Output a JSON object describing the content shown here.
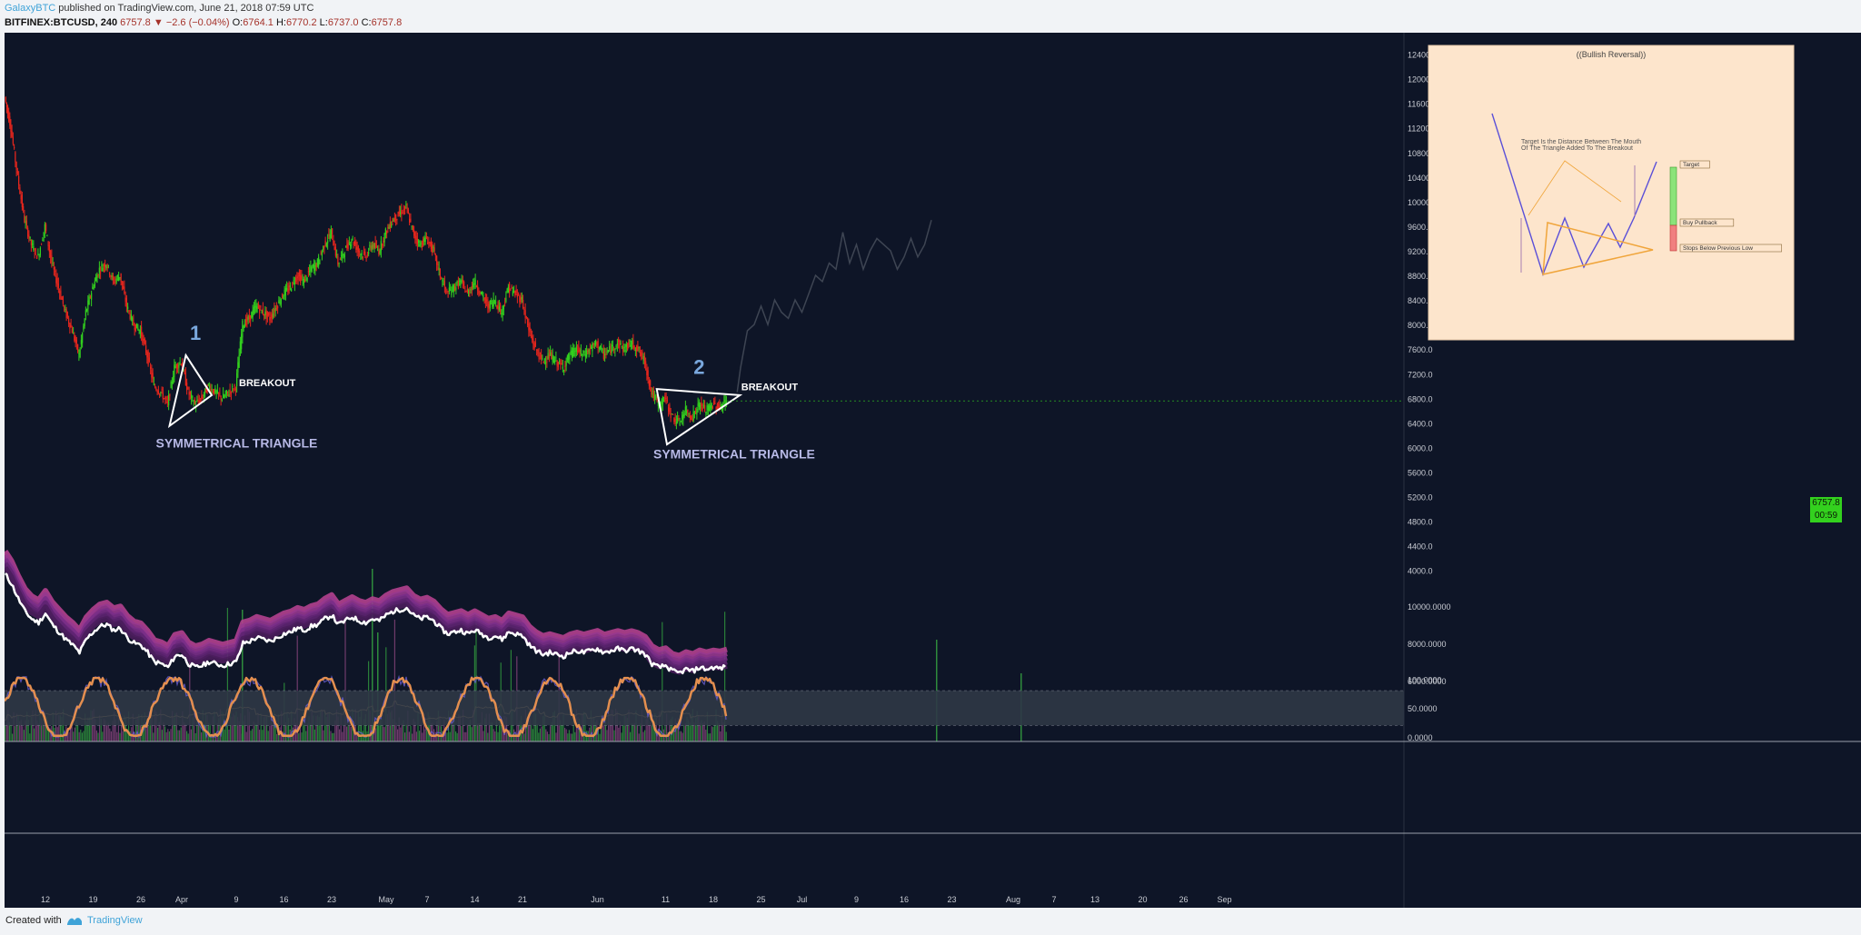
{
  "header": {
    "author": "GalaxyBTC",
    "published_text": " published on TradingView.com, June 21, 2018 07:59 UTC",
    "symbol": "BITFINEX:BTCUSD, 240",
    "last": "6757.8",
    "change": "−2.6 (−0.04%)",
    "open_label": "O:",
    "open": "6764.1",
    "high_label": "H:",
    "high": "6770.2",
    "low_label": "L:",
    "low": "6737.0",
    "close_label": "C:",
    "close": "6757.8"
  },
  "footer": {
    "created_with": "Created with",
    "brand": "TradingView"
  },
  "colors": {
    "background": "#0e1527",
    "up": "#33d11e",
    "down": "#e8261d",
    "triangle": "#ffffff",
    "label": "#b7b9e6",
    "number": "#7aa8de",
    "projection": "#3e4553",
    "inset_bg": "#fde5cc",
    "inset_line": "#5a4fd8",
    "inset_triangle": "#f0a53b",
    "oscillator": "#e48f4f"
  },
  "chart_data": {
    "type": "candlestick",
    "symbol": "BITFINEX:BTCUSD",
    "interval": "240",
    "y_axis": {
      "ticks": [
        4000,
        4400,
        4800,
        5200,
        5600,
        6000,
        6400,
        6800,
        7200,
        7600,
        8000,
        8400,
        8800,
        9200,
        9600,
        10000,
        10400,
        10800,
        11200,
        11600,
        12000,
        12400
      ],
      "range": [
        3700,
        12600
      ]
    },
    "x_axis": {
      "labels": [
        "12",
        "19",
        "26",
        "Apr",
        "9",
        "16",
        "23",
        "May",
        "7",
        "14",
        "21",
        "Jun",
        "11",
        "18",
        "25",
        "Jul",
        "9",
        "16",
        "23",
        "Aug",
        "7",
        "13",
        "20",
        "26",
        "Sep"
      ],
      "days": [
        11,
        18,
        25,
        31,
        39,
        46,
        53,
        61,
        67,
        74,
        81,
        92,
        102,
        109,
        116,
        122,
        130,
        137,
        144,
        153,
        159,
        165,
        172,
        178,
        184
      ]
    },
    "price_path": [
      {
        "day": 5.1,
        "price": 11700
      },
      {
        "day": 6,
        "price": 11200
      },
      {
        "day": 7,
        "price": 10400
      },
      {
        "day": 8,
        "price": 9700
      },
      {
        "day": 9,
        "price": 9300
      },
      {
        "day": 10,
        "price": 9100
      },
      {
        "day": 11,
        "price": 9600
      },
      {
        "day": 12,
        "price": 9000
      },
      {
        "day": 13,
        "price": 8600
      },
      {
        "day": 14,
        "price": 8200
      },
      {
        "day": 15,
        "price": 7900
      },
      {
        "day": 16,
        "price": 7500
      },
      {
        "day": 17,
        "price": 8200
      },
      {
        "day": 18,
        "price": 8600
      },
      {
        "day": 19,
        "price": 8900
      },
      {
        "day": 20,
        "price": 9000
      },
      {
        "day": 21,
        "price": 8700
      },
      {
        "day": 22,
        "price": 8800
      },
      {
        "day": 23,
        "price": 8300
      },
      {
        "day": 24,
        "price": 8000
      },
      {
        "day": 25,
        "price": 7900
      },
      {
        "day": 26,
        "price": 7500
      },
      {
        "day": 27,
        "price": 7000
      },
      {
        "day": 28,
        "price": 6900
      },
      {
        "day": 29,
        "price": 6700
      },
      {
        "day": 30,
        "price": 7300
      },
      {
        "day": 31,
        "price": 7400
      },
      {
        "day": 32,
        "price": 6900
      },
      {
        "day": 33,
        "price": 6700
      },
      {
        "day": 34,
        "price": 6800
      },
      {
        "day": 35,
        "price": 7000
      },
      {
        "day": 36,
        "price": 6900
      },
      {
        "day": 37,
        "price": 6800
      },
      {
        "day": 38,
        "price": 6900
      },
      {
        "day": 39,
        "price": 7000
      },
      {
        "day": 40,
        "price": 8000
      },
      {
        "day": 41,
        "price": 8100
      },
      {
        "day": 42,
        "price": 8300
      },
      {
        "day": 43,
        "price": 8200
      },
      {
        "day": 44,
        "price": 8100
      },
      {
        "day": 45,
        "price": 8300
      },
      {
        "day": 46,
        "price": 8500
      },
      {
        "day": 47,
        "price": 8600
      },
      {
        "day": 48,
        "price": 8800
      },
      {
        "day": 49,
        "price": 8700
      },
      {
        "day": 50,
        "price": 8900
      },
      {
        "day": 51,
        "price": 9000
      },
      {
        "day": 52,
        "price": 9300
      },
      {
        "day": 53,
        "price": 9500
      },
      {
        "day": 54,
        "price": 9000
      },
      {
        "day": 55,
        "price": 9200
      },
      {
        "day": 56,
        "price": 9400
      },
      {
        "day": 57,
        "price": 9200
      },
      {
        "day": 58,
        "price": 9100
      },
      {
        "day": 59,
        "price": 9300
      },
      {
        "day": 60,
        "price": 9200
      },
      {
        "day": 61,
        "price": 9500
      },
      {
        "day": 62,
        "price": 9700
      },
      {
        "day": 63,
        "price": 9800
      },
      {
        "day": 64,
        "price": 9900
      },
      {
        "day": 65,
        "price": 9500
      },
      {
        "day": 66,
        "price": 9300
      },
      {
        "day": 67,
        "price": 9400
      },
      {
        "day": 68,
        "price": 9200
      },
      {
        "day": 69,
        "price": 8800
      },
      {
        "day": 70,
        "price": 8500
      },
      {
        "day": 71,
        "price": 8600
      },
      {
        "day": 72,
        "price": 8700
      },
      {
        "day": 73,
        "price": 8500
      },
      {
        "day": 74,
        "price": 8700
      },
      {
        "day": 75,
        "price": 8500
      },
      {
        "day": 76,
        "price": 8300
      },
      {
        "day": 77,
        "price": 8400
      },
      {
        "day": 78,
        "price": 8200
      },
      {
        "day": 79,
        "price": 8600
      },
      {
        "day": 80,
        "price": 8500
      },
      {
        "day": 81,
        "price": 8400
      },
      {
        "day": 82,
        "price": 7900
      },
      {
        "day": 83,
        "price": 7600
      },
      {
        "day": 84,
        "price": 7400
      },
      {
        "day": 85,
        "price": 7500
      },
      {
        "day": 86,
        "price": 7400
      },
      {
        "day": 87,
        "price": 7300
      },
      {
        "day": 88,
        "price": 7500
      },
      {
        "day": 89,
        "price": 7600
      },
      {
        "day": 90,
        "price": 7500
      },
      {
        "day": 91,
        "price": 7600
      },
      {
        "day": 92,
        "price": 7700
      },
      {
        "day": 93,
        "price": 7500
      },
      {
        "day": 94,
        "price": 7600
      },
      {
        "day": 95,
        "price": 7700
      },
      {
        "day": 96,
        "price": 7600
      },
      {
        "day": 97,
        "price": 7700
      },
      {
        "day": 98,
        "price": 7600
      },
      {
        "day": 99,
        "price": 7400
      },
      {
        "day": 100,
        "price": 6900
      },
      {
        "day": 101,
        "price": 6700
      },
      {
        "day": 102,
        "price": 6800
      },
      {
        "day": 103,
        "price": 6500
      },
      {
        "day": 104,
        "price": 6400
      },
      {
        "day": 105,
        "price": 6600
      },
      {
        "day": 106,
        "price": 6500
      },
      {
        "day": 107,
        "price": 6700
      },
      {
        "day": 108,
        "price": 6600
      },
      {
        "day": 109,
        "price": 6700
      },
      {
        "day": 110,
        "price": 6650
      },
      {
        "day": 111,
        "price": 6757.8
      }
    ],
    "projection_path": [
      {
        "day": 112.5,
        "price": 6900
      },
      {
        "day": 113,
        "price": 7300
      },
      {
        "day": 114,
        "price": 7900
      },
      {
        "day": 115,
        "price": 8000
      },
      {
        "day": 116,
        "price": 8300
      },
      {
        "day": 117,
        "price": 8000
      },
      {
        "day": 118,
        "price": 8400
      },
      {
        "day": 119,
        "price": 8200
      },
      {
        "day": 120,
        "price": 8100
      },
      {
        "day": 121,
        "price": 8400
      },
      {
        "day": 122,
        "price": 8200
      },
      {
        "day": 123,
        "price": 8500
      },
      {
        "day": 124,
        "price": 8800
      },
      {
        "day": 125,
        "price": 8700
      },
      {
        "day": 126,
        "price": 9000
      },
      {
        "day": 127,
        "price": 8900
      },
      {
        "day": 128,
        "price": 9500
      },
      {
        "day": 129,
        "price": 9000
      },
      {
        "day": 130,
        "price": 9300
      },
      {
        "day": 131,
        "price": 8900
      },
      {
        "day": 132,
        "price": 9200
      },
      {
        "day": 133,
        "price": 9400
      },
      {
        "day": 134,
        "price": 9300
      },
      {
        "day": 135,
        "price": 9200
      },
      {
        "day": 136,
        "price": 8900
      },
      {
        "day": 137,
        "price": 9100
      },
      {
        "day": 138,
        "price": 9400
      },
      {
        "day": 139,
        "price": 9100
      },
      {
        "day": 140,
        "price": 9300
      },
      {
        "day": 141,
        "price": 9700
      }
    ],
    "triangles": [
      {
        "number": "1",
        "points": [
          {
            "day": 31.6,
            "price": 7500
          },
          {
            "day": 35.4,
            "price": 6850
          },
          {
            "day": 29.2,
            "price": 6350
          }
        ]
      },
      {
        "number": "2",
        "points": [
          {
            "day": 100.7,
            "price": 6950
          },
          {
            "day": 112.9,
            "price": 6850
          },
          {
            "day": 102.2,
            "price": 6050
          }
        ]
      }
    ],
    "annotations": [
      {
        "text": "1",
        "day": 32.2,
        "price": 7750,
        "kind": "number"
      },
      {
        "text": "BREAKOUT",
        "day": 39.4,
        "price": 7000,
        "kind": "breakout"
      },
      {
        "text": "SYMMETRICAL TRIANGLE",
        "day": 27.2,
        "price": 6000,
        "kind": "label"
      },
      {
        "text": "2",
        "day": 106.1,
        "price": 7200,
        "kind": "number"
      },
      {
        "text": "BREAKOUT",
        "day": 113.1,
        "price": 6930,
        "kind": "breakout"
      },
      {
        "text": "SYMMETRICAL TRIANGLE",
        "day": 100.2,
        "price": 5820,
        "kind": "label"
      }
    ],
    "last_price_labels": [
      "6757.8",
      "00:59"
    ],
    "volume_panel": {
      "visible": true
    },
    "indicator_panel_1": {
      "ticks": [
        "10000.0000",
        "8000.0000",
        "6000.0000"
      ],
      "range": [
        5900,
        11500
      ]
    },
    "indicator_panel_2": {
      "ticks": [
        "100.0000",
        "50.0000",
        "0.0000"
      ],
      "range": [
        0,
        110
      ],
      "band": [
        20,
        80
      ]
    },
    "inset": {
      "title": "((Bullish Reversal))",
      "note_lines": [
        "Target Is the Distance Between The Mouth",
        "Of The Triangle Added To The Breakout"
      ],
      "labels": [
        "Target",
        "Buy Pullback",
        "Stops Below Previous Low"
      ]
    }
  }
}
